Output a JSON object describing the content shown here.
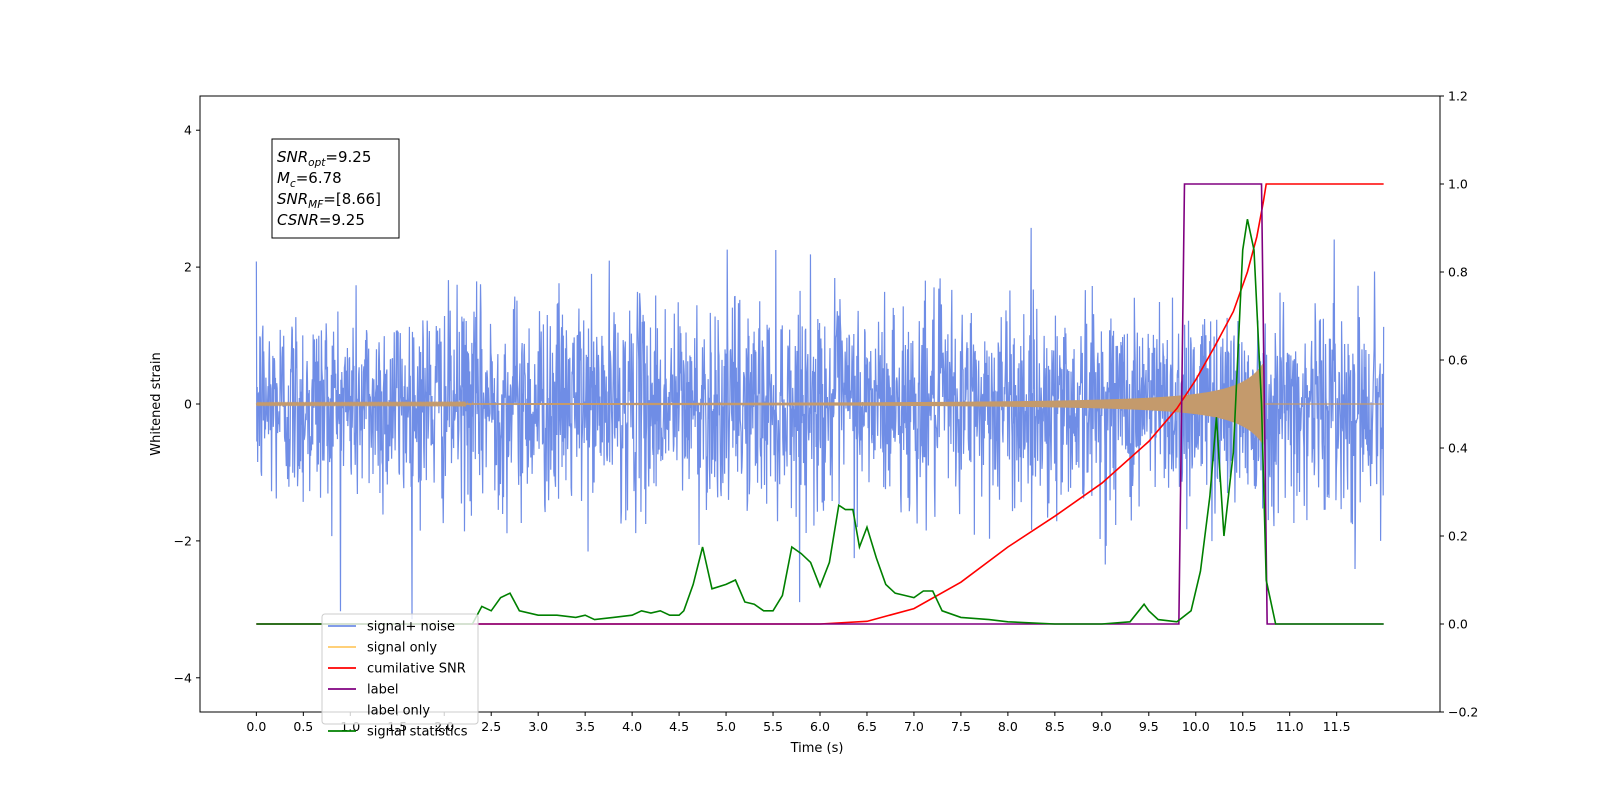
{
  "chart_data": {
    "type": "line",
    "xlabel": "Time (s)",
    "ylabel_left": "Whitened strain",
    "xlim": [
      -0.6,
      12.6
    ],
    "ylim_left": [
      -4.5,
      4.5
    ],
    "ylim_right": [
      -0.2,
      1.2
    ],
    "x_ticks": [
      0.0,
      0.5,
      1.0,
      1.5,
      2.0,
      2.5,
      3.0,
      3.5,
      4.0,
      4.5,
      5.0,
      5.5,
      6.0,
      6.5,
      7.0,
      7.5,
      8.0,
      8.5,
      9.0,
      9.5,
      10.0,
      10.5,
      11.0,
      11.5
    ],
    "x_tick_labels": [
      "0.0",
      "0.5",
      "1.0",
      "1.5",
      "2.0",
      "2.5",
      "3.0",
      "3.5",
      "4.0",
      "4.5",
      "5.0",
      "5.5",
      "6.0",
      "6.5",
      "7.0",
      "7.5",
      "8.0",
      "8.5",
      "9.0",
      "9.5",
      "10.0",
      "10.5",
      "11.0",
      "11.5"
    ],
    "y_left_ticks": [
      -4,
      -2,
      0,
      2,
      4
    ],
    "y_left_tick_labels": [
      "−4",
      "−2",
      "0",
      "2",
      "4"
    ],
    "y_right_ticks": [
      -0.2,
      0.0,
      0.2,
      0.4,
      0.6,
      0.8,
      1.0,
      1.2
    ],
    "y_right_tick_labels": [
      "−0.2",
      "0.0",
      "0.2",
      "0.4",
      "0.6",
      "0.8",
      "1.0",
      "1.2"
    ],
    "grid": false,
    "legend_position": "bottom-left",
    "annotation": {
      "lines": [
        {
          "base": "SNR",
          "sub": "opt",
          "value": "=9.25"
        },
        {
          "base": "M",
          "sub": "c",
          "value": "=6.78"
        },
        {
          "base": "SNR",
          "sub": "MF",
          "value": "=[8.66]"
        },
        {
          "base": "CSNR",
          "sub": "",
          "value": "=9.25"
        }
      ]
    },
    "series": [
      {
        "name": "signal+ noise",
        "axis": "left",
        "color": "#6f8de6",
        "description_kind": "noise",
        "x_range": [
          0.0,
          12.0
        ],
        "std": 0.75
      },
      {
        "name": "signal only",
        "axis": "left",
        "color": "#ffa500",
        "description_kind": "chirp",
        "x_range": [
          0.0,
          12.0
        ],
        "chirp_end": 10.72,
        "peak_amplitude": 0.6
      },
      {
        "name": "cumilative SNR",
        "axis": "right",
        "color": "#ff0000",
        "x": [
          0.0,
          6.0,
          6.5,
          7.0,
          7.5,
          8.0,
          8.5,
          9.0,
          9.5,
          9.8,
          10.0,
          10.2,
          10.4,
          10.55,
          10.65,
          10.72,
          10.75,
          12.0
        ],
        "values": [
          0.0,
          0.0,
          0.006,
          0.035,
          0.095,
          0.175,
          0.245,
          0.32,
          0.415,
          0.49,
          0.555,
          0.63,
          0.71,
          0.8,
          0.88,
          0.96,
          1.0,
          1.0
        ]
      },
      {
        "name": "label",
        "axis": "right",
        "color": "#800080",
        "x": [
          0.0,
          9.82,
          9.88,
          10.7,
          10.76,
          12.0
        ],
        "values": [
          0.0,
          0.0,
          1.0,
          1.0,
          0.0,
          0.0
        ]
      },
      {
        "name": "signal statistics",
        "axis": "right",
        "color": "#008000",
        "x": [
          0.0,
          2.3,
          2.4,
          2.5,
          2.6,
          2.7,
          2.8,
          3.0,
          3.2,
          3.4,
          3.5,
          3.6,
          3.8,
          4.0,
          4.1,
          4.2,
          4.3,
          4.4,
          4.5,
          4.55,
          4.65,
          4.75,
          4.85,
          5.0,
          5.1,
          5.2,
          5.3,
          5.4,
          5.5,
          5.6,
          5.7,
          5.8,
          5.9,
          6.0,
          6.1,
          6.2,
          6.27,
          6.35,
          6.42,
          6.5,
          6.6,
          6.7,
          6.8,
          6.9,
          7.0,
          7.1,
          7.2,
          7.3,
          7.5,
          7.8,
          8.0,
          8.5,
          9.0,
          9.3,
          9.45,
          9.5,
          9.6,
          9.8,
          9.95,
          10.05,
          10.15,
          10.22,
          10.3,
          10.4,
          10.5,
          10.55,
          10.62,
          10.7,
          10.75,
          10.85,
          11.0,
          12.0
        ],
        "values": [
          0.0,
          0.0,
          0.04,
          0.03,
          0.06,
          0.07,
          0.03,
          0.02,
          0.02,
          0.015,
          0.02,
          0.01,
          0.015,
          0.02,
          0.03,
          0.025,
          0.03,
          0.02,
          0.02,
          0.03,
          0.09,
          0.175,
          0.08,
          0.09,
          0.1,
          0.05,
          0.045,
          0.03,
          0.03,
          0.065,
          0.175,
          0.16,
          0.14,
          0.085,
          0.14,
          0.27,
          0.26,
          0.26,
          0.175,
          0.22,
          0.15,
          0.09,
          0.07,
          0.065,
          0.06,
          0.075,
          0.075,
          0.03,
          0.015,
          0.01,
          0.005,
          0.0,
          0.0,
          0.005,
          0.045,
          0.03,
          0.01,
          0.005,
          0.03,
          0.12,
          0.29,
          0.47,
          0.2,
          0.39,
          0.85,
          0.92,
          0.85,
          0.5,
          0.1,
          0.0,
          0.0,
          0.0
        ]
      },
      {
        "name": "",
        "legend_text": "label only",
        "axis": "right",
        "color": "#ffffff",
        "hidden_in_plot": true
      }
    ],
    "legend_order": [
      "signal+ noise",
      "signal only",
      "cumilative SNR",
      "label",
      "label only",
      "signal statistics"
    ]
  }
}
